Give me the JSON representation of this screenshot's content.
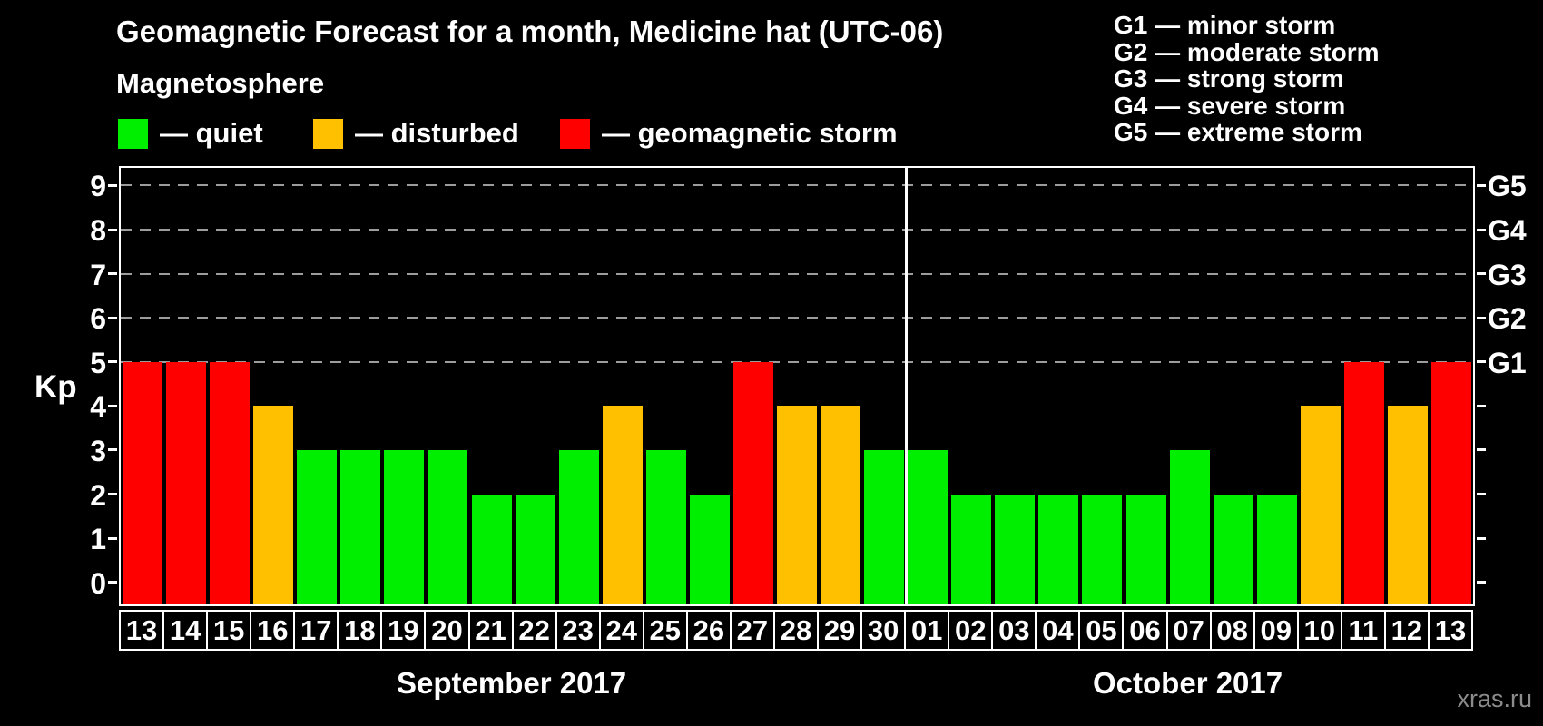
{
  "header": {
    "title": "Geomagnetic Forecast for a month, Medicine hat (UTC-06)",
    "subtitle": "Magnetosphere"
  },
  "legend": {
    "items": [
      {
        "key": "quiet",
        "label": "— quiet",
        "color": "#00ef00"
      },
      {
        "key": "disturbed",
        "label": "— disturbed",
        "color": "#ffc000"
      },
      {
        "key": "storm",
        "label": "— geomagnetic storm",
        "color": "#ff0000"
      }
    ]
  },
  "g_legend": {
    "items": [
      "G1 — minor storm",
      "G2 — moderate storm",
      "G3 — strong storm",
      "G4 — severe storm",
      "G5 — extreme storm"
    ]
  },
  "watermark": "xras.ru",
  "chart_data": {
    "type": "bar",
    "title": "Geomagnetic Forecast for a month, Medicine hat (UTC-06)",
    "ylabel": "Kp",
    "ylim": [
      -0.5,
      9.4
    ],
    "yticks": [
      0,
      1,
      2,
      3,
      4,
      5,
      6,
      7,
      8,
      9
    ],
    "grid_levels": [
      5,
      6,
      7,
      8,
      9
    ],
    "right_axis_labels": [
      "G1",
      "G2",
      "G3",
      "G4",
      "G5"
    ],
    "grid": "dashed horizontal at Kp 5-9 only",
    "legend_position": "top-left",
    "months": [
      {
        "label": "September 2017",
        "days": [
          {
            "day": "13",
            "kp": 5,
            "state": "storm"
          },
          {
            "day": "14",
            "kp": 5,
            "state": "storm"
          },
          {
            "day": "15",
            "kp": 5,
            "state": "storm"
          },
          {
            "day": "16",
            "kp": 4,
            "state": "disturbed"
          },
          {
            "day": "17",
            "kp": 3,
            "state": "quiet"
          },
          {
            "day": "18",
            "kp": 3,
            "state": "quiet"
          },
          {
            "day": "19",
            "kp": 3,
            "state": "quiet"
          },
          {
            "day": "20",
            "kp": 3,
            "state": "quiet"
          },
          {
            "day": "21",
            "kp": 2,
            "state": "quiet"
          },
          {
            "day": "22",
            "kp": 2,
            "state": "quiet"
          },
          {
            "day": "23",
            "kp": 3,
            "state": "quiet"
          },
          {
            "day": "24",
            "kp": 4,
            "state": "disturbed"
          },
          {
            "day": "25",
            "kp": 3,
            "state": "quiet"
          },
          {
            "day": "26",
            "kp": 2,
            "state": "quiet"
          },
          {
            "day": "27",
            "kp": 5,
            "state": "storm"
          },
          {
            "day": "28",
            "kp": 4,
            "state": "disturbed"
          },
          {
            "day": "29",
            "kp": 4,
            "state": "disturbed"
          },
          {
            "day": "30",
            "kp": 3,
            "state": "quiet"
          }
        ]
      },
      {
        "label": "October 2017",
        "days": [
          {
            "day": "01",
            "kp": 3,
            "state": "quiet"
          },
          {
            "day": "02",
            "kp": 2,
            "state": "quiet"
          },
          {
            "day": "03",
            "kp": 2,
            "state": "quiet"
          },
          {
            "day": "04",
            "kp": 2,
            "state": "quiet"
          },
          {
            "day": "05",
            "kp": 2,
            "state": "quiet"
          },
          {
            "day": "06",
            "kp": 2,
            "state": "quiet"
          },
          {
            "day": "07",
            "kp": 3,
            "state": "quiet"
          },
          {
            "day": "08",
            "kp": 2,
            "state": "quiet"
          },
          {
            "day": "09",
            "kp": 2,
            "state": "quiet"
          },
          {
            "day": "10",
            "kp": 4,
            "state": "disturbed"
          },
          {
            "day": "11",
            "kp": 5,
            "state": "storm"
          },
          {
            "day": "12",
            "kp": 4,
            "state": "disturbed"
          },
          {
            "day": "13",
            "kp": 5,
            "state": "storm"
          }
        ]
      }
    ]
  }
}
